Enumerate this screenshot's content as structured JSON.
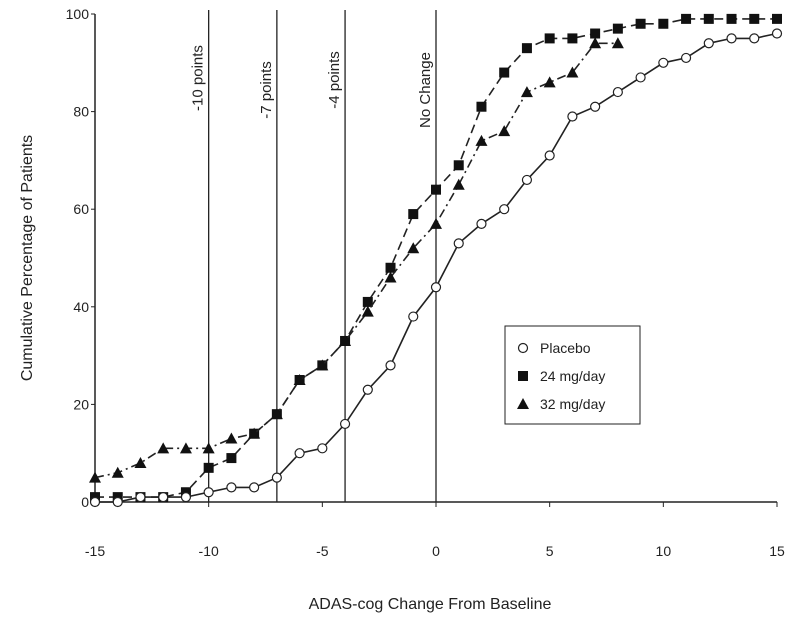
{
  "chart_data": {
    "type": "line",
    "title": "",
    "xlabel": "ADAS-cog Change From Baseline",
    "ylabel": "Cumulative Percentage of Patients",
    "xlim": [
      -15,
      15
    ],
    "ylim": [
      0,
      100
    ],
    "x_ticks": [
      "-15",
      "-10",
      "-5",
      "0",
      "5",
      "10",
      "15"
    ],
    "y_ticks": [
      "0",
      "20",
      "40",
      "60",
      "80",
      "100"
    ],
    "grid": false,
    "legend_position": "lower-right",
    "reference_lines": [
      {
        "x": -10,
        "label": "-10 points"
      },
      {
        "x": -7,
        "label": "-7 points"
      },
      {
        "x": -4,
        "label": "-4 points"
      },
      {
        "x": 0,
        "label": "No Change"
      }
    ],
    "x": [
      -15,
      -14,
      -13,
      -12,
      -11,
      -10,
      -9,
      -8,
      -7,
      -6,
      -5,
      -4,
      -3,
      -2,
      -1,
      0,
      1,
      2,
      3,
      4,
      5,
      6,
      7,
      8,
      9,
      10,
      11,
      12,
      13,
      14,
      15
    ],
    "series": [
      {
        "name": "Placebo",
        "marker": "open-circle",
        "line": "solid",
        "values": [
          0,
          0,
          1,
          1,
          1,
          2,
          3,
          3,
          5,
          10,
          11,
          16,
          23,
          28,
          38,
          44,
          53,
          57,
          60,
          66,
          71,
          79,
          81,
          84,
          87,
          90,
          91,
          94,
          95,
          95,
          96
        ]
      },
      {
        "name": "24 mg/day",
        "marker": "filled-square",
        "line": "dashed",
        "values": [
          1,
          1,
          1,
          1,
          2,
          7,
          9,
          14,
          18,
          25,
          28,
          33,
          41,
          48,
          59,
          64,
          69,
          81,
          88,
          93,
          95,
          95,
          96,
          97,
          98,
          98,
          99,
          99,
          99,
          99,
          99
        ]
      },
      {
        "name": "32 mg/day",
        "marker": "filled-triangle",
        "line": "dash-dot",
        "values": [
          5,
          6,
          8,
          11,
          11,
          11,
          13,
          14,
          18,
          25,
          28,
          33,
          39,
          46,
          52,
          57,
          65,
          74,
          76,
          84,
          86,
          88,
          94,
          94,
          null,
          null,
          null,
          null,
          null,
          null,
          null
        ]
      }
    ]
  }
}
